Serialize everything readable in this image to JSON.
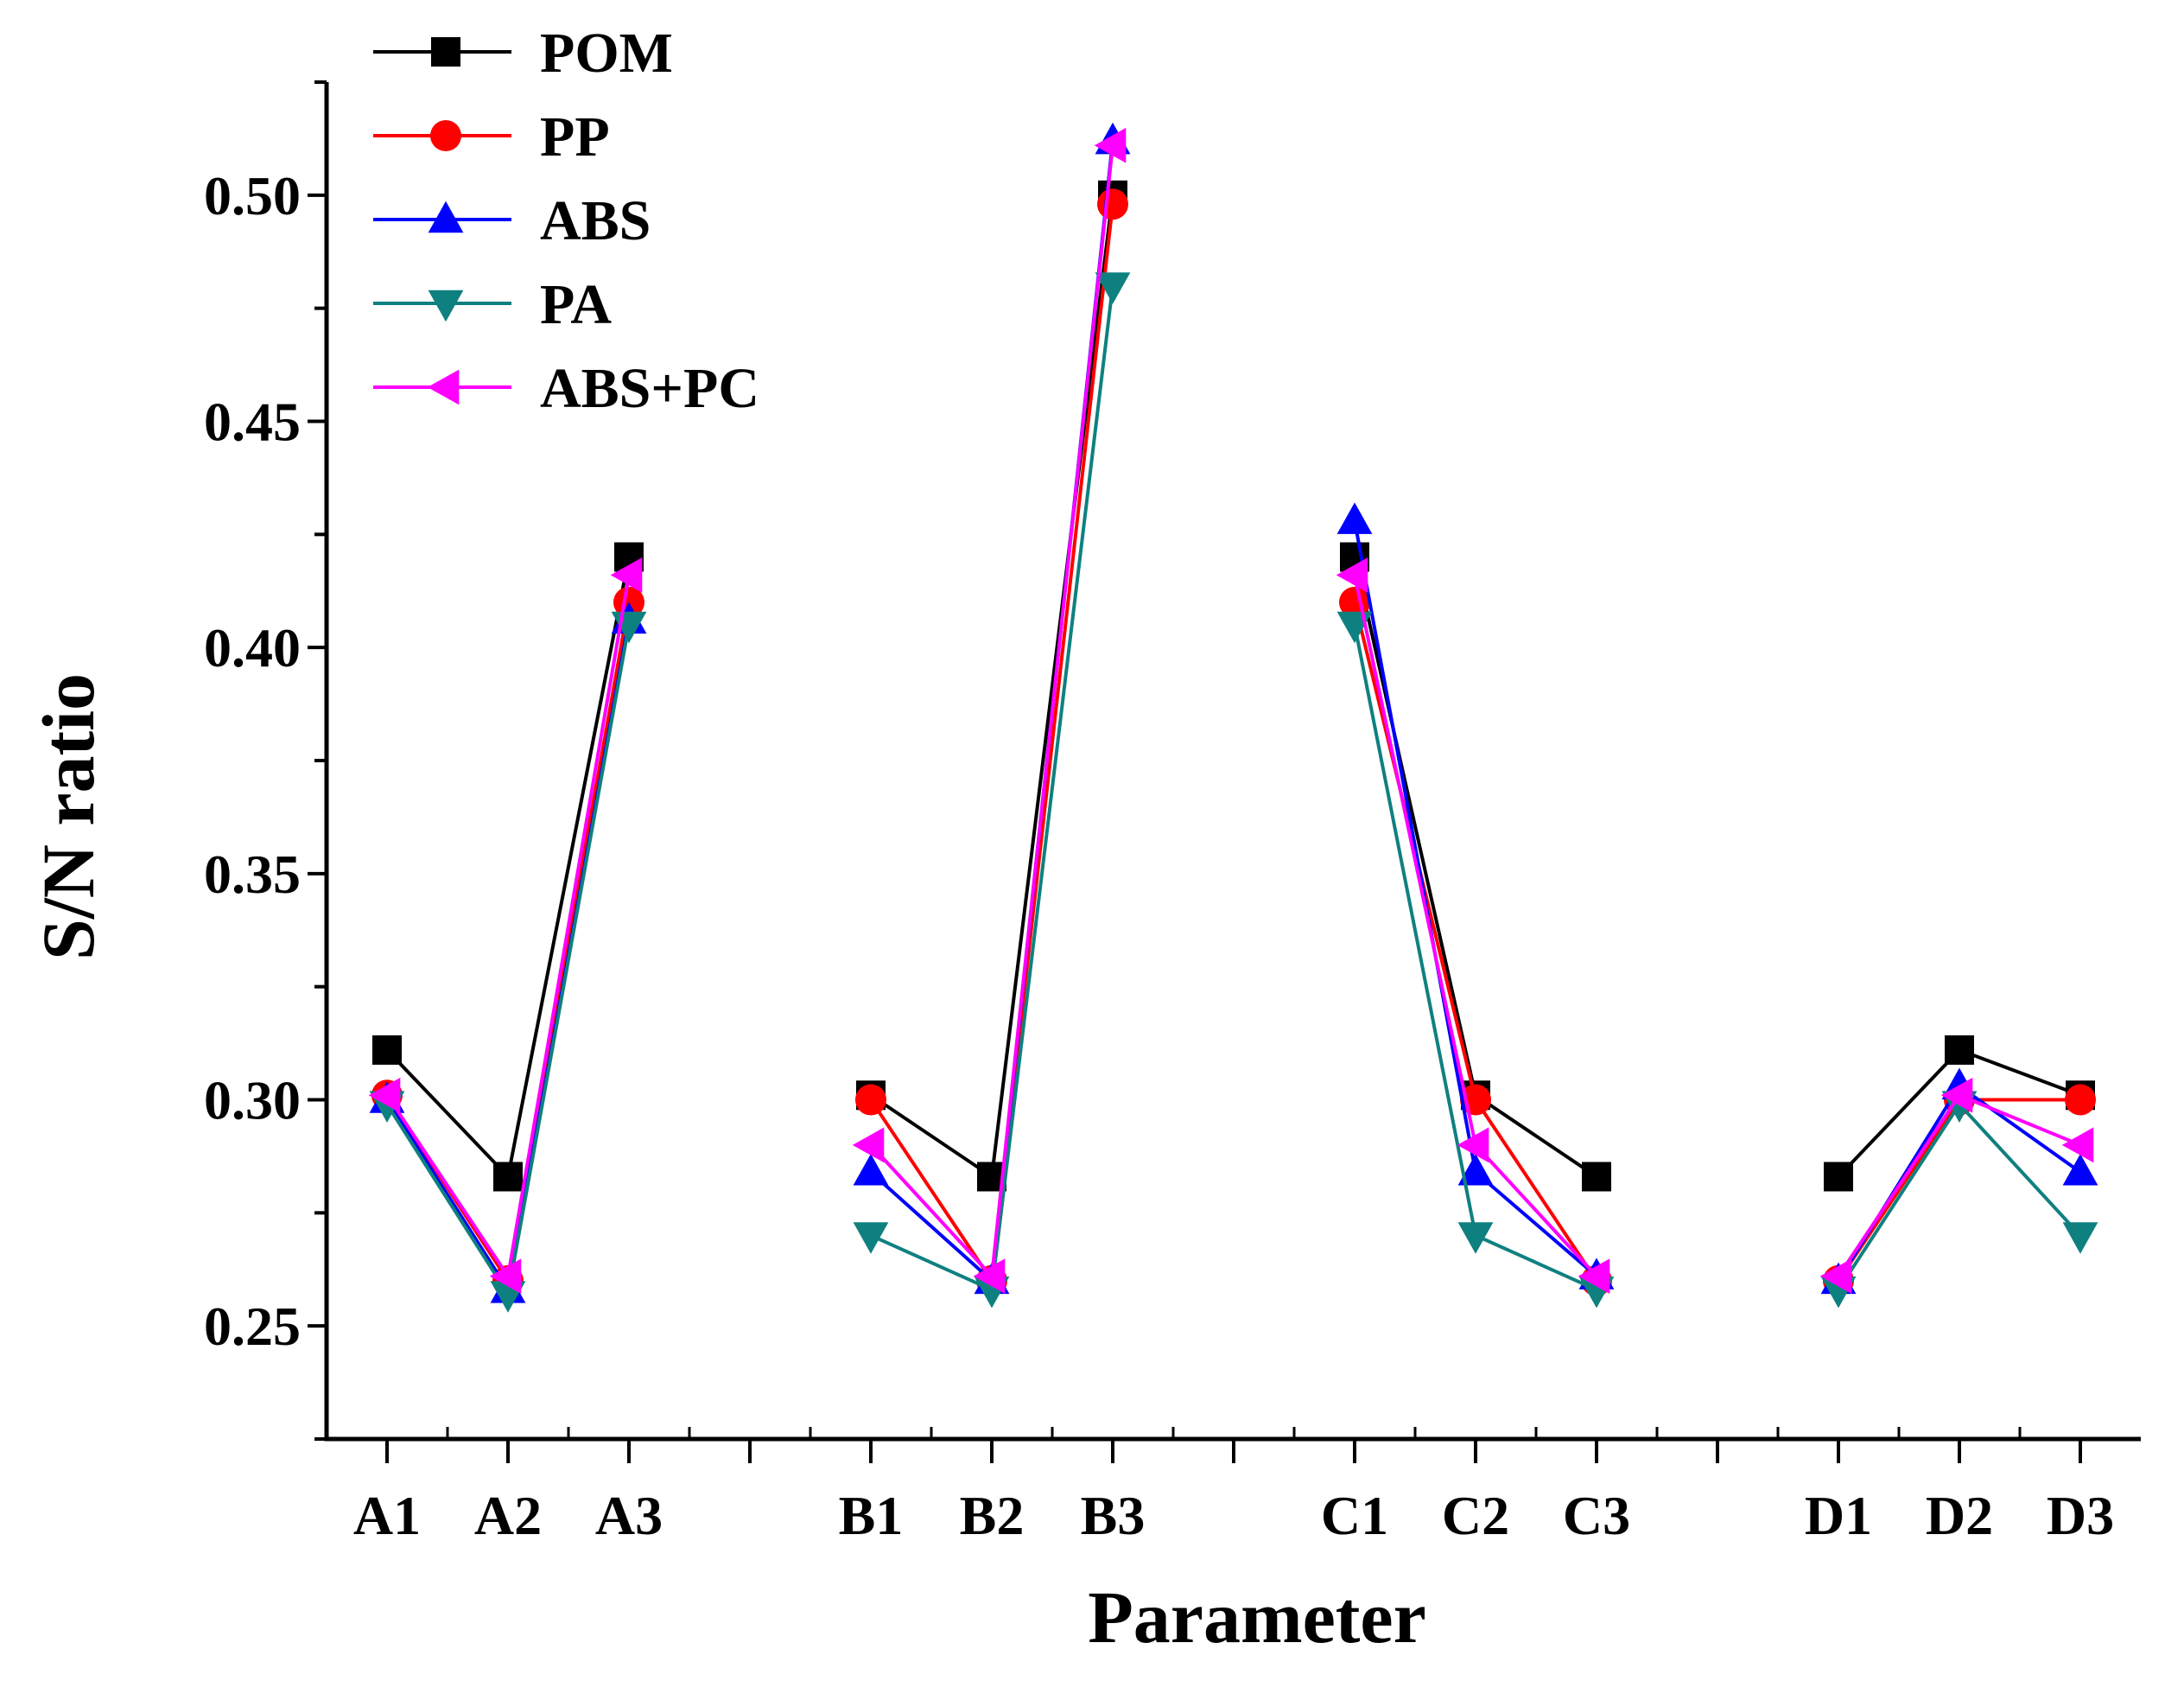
{
  "chart_data": {
    "type": "line",
    "title": "",
    "xlabel": "Parameter",
    "ylabel": "S/N ratio",
    "ylim": [
      0.225,
      0.525
    ],
    "yticks": [
      0.25,
      0.3,
      0.35,
      0.4,
      0.45,
      0.5
    ],
    "ytick_labels": [
      "0.25",
      "0.30",
      "0.35",
      "0.40",
      "0.45",
      "0.50"
    ],
    "xlim": [
      -0.5,
      14.5
    ],
    "categories": [
      "A1",
      "A2",
      "A3",
      "B1",
      "B2",
      "B3",
      "C1",
      "C2",
      "C3",
      "D1",
      "D2",
      "D3"
    ],
    "category_positions": [
      1,
      2,
      3,
      5,
      6,
      7,
      9,
      10,
      11,
      13,
      14,
      15
    ],
    "groups": [
      [
        0,
        1,
        2
      ],
      [
        3,
        4,
        5
      ],
      [
        6,
        7,
        8
      ],
      [
        9,
        10,
        11
      ]
    ],
    "legend_position": "top-left",
    "grid": false,
    "series": [
      {
        "name": "POM",
        "color": "#000000",
        "marker": "square",
        "values": [
          0.311,
          0.283,
          0.42,
          0.301,
          0.283,
          0.5,
          0.42,
          0.301,
          0.283,
          0.283,
          0.311,
          0.301
        ]
      },
      {
        "name": "PP",
        "color": "#ff0000",
        "marker": "circle",
        "values": [
          0.301,
          0.26,
          0.41,
          0.3,
          0.26,
          0.498,
          0.41,
          0.3,
          0.26,
          0.26,
          0.3,
          0.3
        ]
      },
      {
        "name": "ABS",
        "color": "#0000ff",
        "marker": "triangle-up",
        "values": [
          0.3,
          0.258,
          0.406,
          0.284,
          0.26,
          0.512,
          0.428,
          0.284,
          0.261,
          0.26,
          0.303,
          0.284
        ]
      },
      {
        "name": "PA",
        "color": "#0f8080",
        "marker": "triangle-down",
        "values": [
          0.299,
          0.257,
          0.405,
          0.27,
          0.258,
          0.48,
          0.405,
          0.27,
          0.258,
          0.258,
          0.299,
          0.27
        ]
      },
      {
        "name": "ABS+PC",
        "color": "#ff00ff",
        "marker": "triangle-left",
        "values": [
          0.301,
          0.261,
          0.416,
          0.29,
          0.261,
          0.511,
          0.416,
          0.29,
          0.261,
          0.261,
          0.301,
          0.29
        ]
      }
    ]
  }
}
